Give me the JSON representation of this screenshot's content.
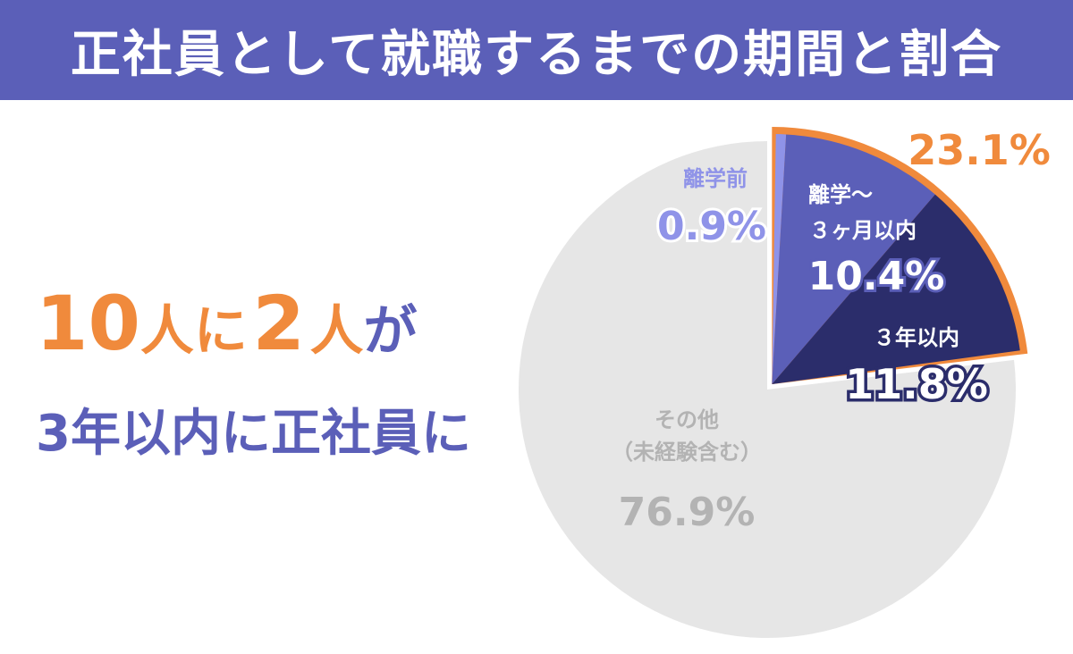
{
  "header": {
    "title": "正社員として就職するまでの期間と割合"
  },
  "headline": {
    "num1": "10",
    "word1": "人に",
    "num2": "2",
    "word2": "人",
    "particle": "が",
    "line2": "3年以内に正社員に"
  },
  "colors": {
    "header_bg": "#5b5fb8",
    "orange": "#f08a3c",
    "before": "#8f93e8",
    "within3m": "#5b5fb8",
    "within3y": "#2b2d6b",
    "other": "#e6e6e6",
    "other_text": "#b3b3b3"
  },
  "chart_data": {
    "type": "pie",
    "start_angle": "top",
    "direction": "clockwise",
    "slices": [
      {
        "key": "before",
        "label": "離学前",
        "value": 0.9,
        "text": "0.9%"
      },
      {
        "key": "within3m",
        "label": "離学〜\n３ヶ月以内",
        "value": 10.4,
        "text": "10.4%"
      },
      {
        "key": "within3y",
        "label": "３年以内",
        "value": 11.8,
        "text": "11.8%"
      },
      {
        "key": "other",
        "label": "その他\n（未経験含む）",
        "value": 76.9,
        "text": "76.9%"
      }
    ],
    "highlight_total": {
      "value": 23.1,
      "text": "23.1%"
    }
  }
}
